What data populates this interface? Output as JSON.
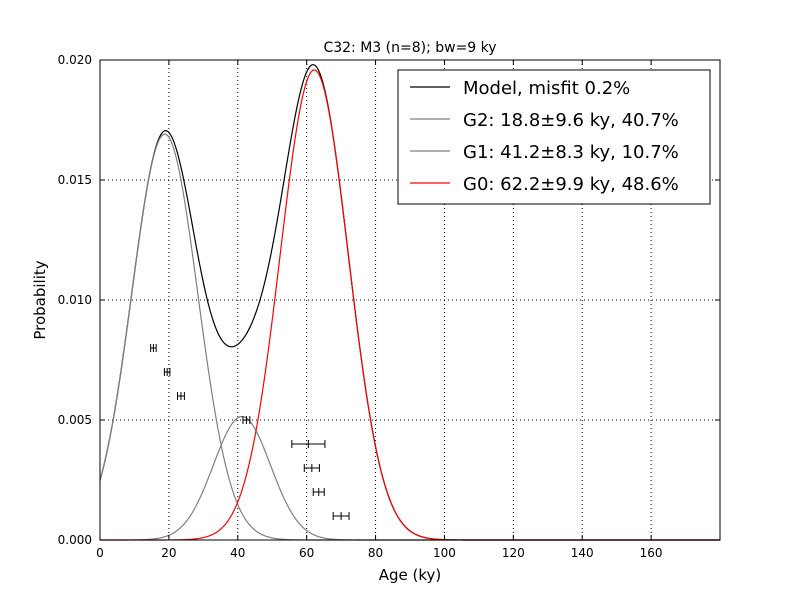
{
  "chart_data": {
    "type": "line",
    "title": "C32: M3 (n=8); bw=9 ky",
    "xlabel": "Age (ky)",
    "ylabel": "Probability",
    "xlim": [
      0,
      180
    ],
    "ylim": [
      0,
      0.02
    ],
    "x_ticks": [
      0,
      20,
      40,
      60,
      80,
      100,
      120,
      140,
      160
    ],
    "x_tick_labels": [
      "0",
      "20",
      "40",
      "60",
      "80",
      "100",
      "120",
      "140",
      "160"
    ],
    "y_ticks": [
      0,
      0.005,
      0.01,
      0.015,
      0.02
    ],
    "y_tick_labels": [
      "0.000",
      "0.005",
      "0.010",
      "0.015",
      "0.020"
    ],
    "grid": true,
    "legend_position": "top-right",
    "series": [
      {
        "name": "Model, misfit 0.2%",
        "color": "#000000",
        "kind": "model"
      },
      {
        "name": "G2: 18.8±9.6 ky, 40.7%",
        "color": "#808080",
        "kind": "gaussian",
        "mean": 18.8,
        "sigma": 9.6,
        "weight": 0.407
      },
      {
        "name": "G1: 41.2±8.3 ky, 10.7%",
        "color": "#808080",
        "kind": "gaussian",
        "mean": 41.2,
        "sigma": 8.3,
        "weight": 0.107
      },
      {
        "name": "G0: 62.2±9.9 ky, 48.6%",
        "color": "#ff0000",
        "kind": "gaussian",
        "mean": 62.2,
        "sigma": 9.9,
        "weight": 0.486
      }
    ],
    "samples": [
      {
        "age": 15.5,
        "error": 0.8,
        "y": 0.008
      },
      {
        "age": 19.5,
        "error": 0.8,
        "y": 0.007
      },
      {
        "age": 23.5,
        "error": 1.0,
        "y": 0.006
      },
      {
        "age": 42.5,
        "error": 1.0,
        "y": 0.005
      },
      {
        "age": 60.5,
        "error": 4.8,
        "y": 0.004
      },
      {
        "age": 61.5,
        "error": 2.2,
        "y": 0.003
      },
      {
        "age": 63.5,
        "error": 1.6,
        "y": 0.002
      },
      {
        "age": 70.0,
        "error": 2.3,
        "y": 0.001
      }
    ]
  }
}
